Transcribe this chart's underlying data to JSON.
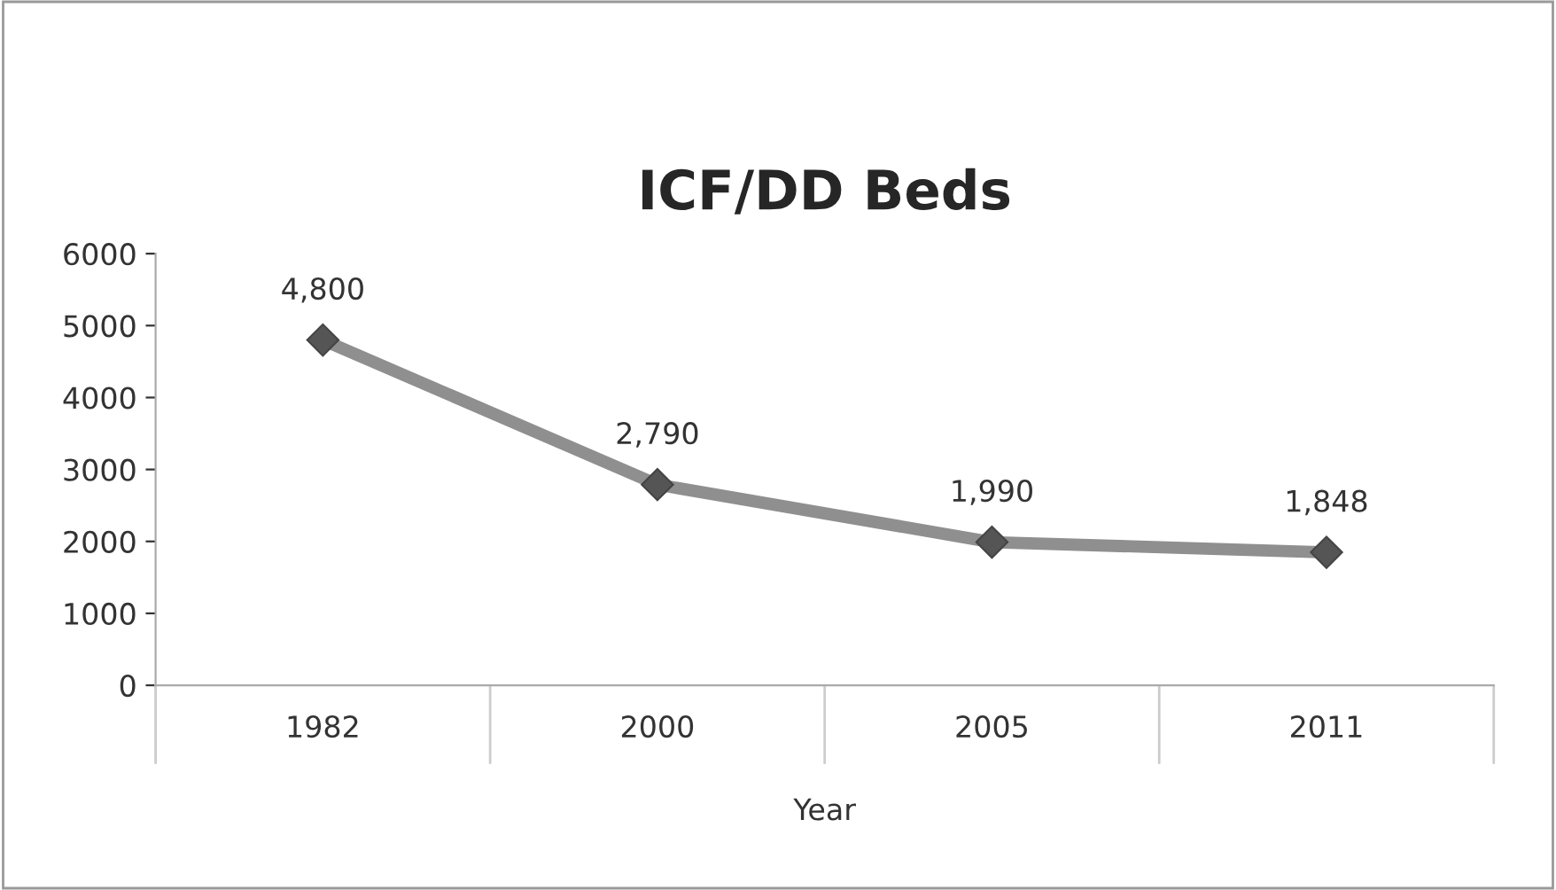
{
  "chart_data": {
    "type": "line",
    "title": "ICF/DD Beds",
    "xlabel": "Year",
    "categories": [
      "1982",
      "2000",
      "2005",
      "2011"
    ],
    "series": [
      {
        "color": "#8f8f8f",
        "values": [
          4800,
          2790,
          1990,
          1848
        ],
        "value_labels": [
          "4,800",
          "2,790",
          "1,990",
          "1,848"
        ]
      }
    ],
    "ylim": [
      0,
      6000
    ],
    "yticks": [
      0,
      1000,
      2000,
      3000,
      4000,
      5000,
      6000
    ],
    "grid": false,
    "legend": false,
    "marker": "diamond",
    "line_style": "solid"
  }
}
